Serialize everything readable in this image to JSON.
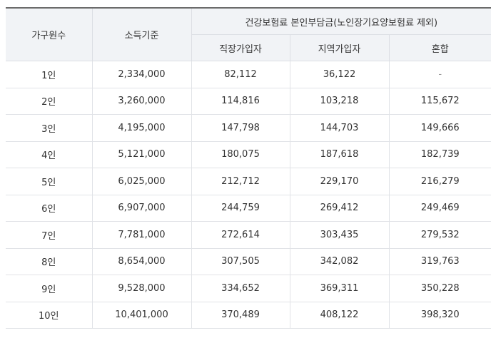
{
  "table": {
    "headers": {
      "household": "가구원수",
      "income": "소득기준",
      "premium_group": "건강보험료 본인부담금(노인장기요양보험료 제외)",
      "employee": "직장가입자",
      "regional": "지역가입자",
      "mixed": "혼합"
    },
    "rows": [
      {
        "household": "1인",
        "income": "2,334,000",
        "employee": "82,112",
        "regional": "36,122",
        "mixed": "-"
      },
      {
        "household": "2인",
        "income": "3,260,000",
        "employee": "114,816",
        "regional": "103,218",
        "mixed": "115,672"
      },
      {
        "household": "3인",
        "income": "4,195,000",
        "employee": "147,798",
        "regional": "144,703",
        "mixed": "149,666"
      },
      {
        "household": "4인",
        "income": "5,121,000",
        "employee": "180,075",
        "regional": "187,618",
        "mixed": "182,739"
      },
      {
        "household": "5인",
        "income": "6,025,000",
        "employee": "212,712",
        "regional": "229,170",
        "mixed": "216,279"
      },
      {
        "household": "6인",
        "income": "6,907,000",
        "employee": "244,759",
        "regional": "269,412",
        "mixed": "249,469"
      },
      {
        "household": "7인",
        "income": "7,781,000",
        "employee": "272,614",
        "regional": "303,435",
        "mixed": "279,532"
      },
      {
        "household": "8인",
        "income": "8,654,000",
        "employee": "307,505",
        "regional": "342,082",
        "mixed": "319,763"
      },
      {
        "household": "9인",
        "income": "9,528,000",
        "employee": "334,652",
        "regional": "369,311",
        "mixed": "350,228"
      },
      {
        "household": "10인",
        "income": "10,401,000",
        "employee": "370,489",
        "regional": "408,122",
        "mixed": "398,320"
      }
    ]
  }
}
